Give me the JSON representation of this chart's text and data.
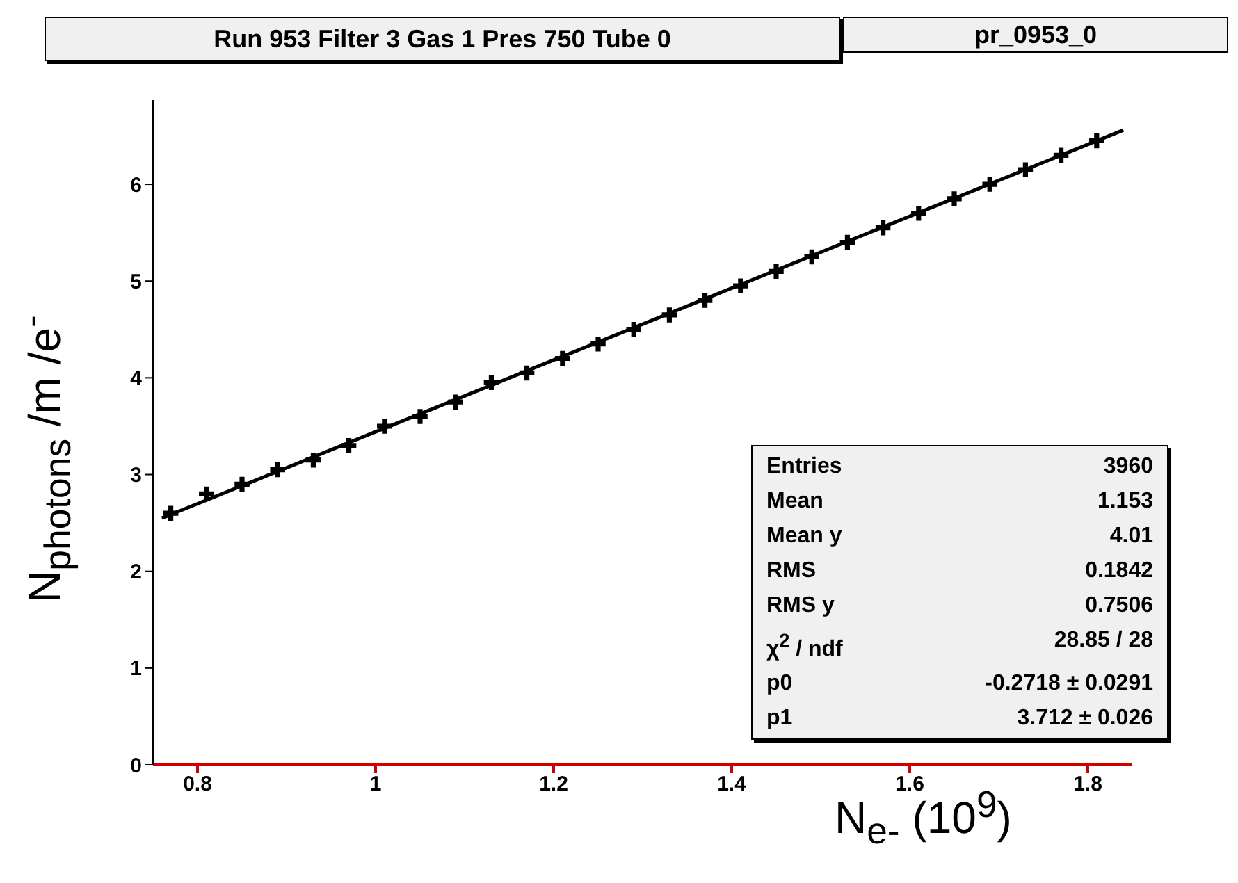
{
  "chart_data": {
    "type": "scatter",
    "title": "Run 953 Filter 3 Gas 1 Pres 750 Tube 0",
    "subtitle": "pr_0953_0",
    "xlabel": "N$_{e-}$ (10$^{9}$)",
    "ylabel": "N$_{photons}$ /m /e$^{-}$",
    "x": [
      0.77,
      0.81,
      0.85,
      0.89,
      0.93,
      0.97,
      1.01,
      1.05,
      1.09,
      1.13,
      1.17,
      1.21,
      1.25,
      1.29,
      1.33,
      1.37,
      1.41,
      1.45,
      1.49,
      1.53,
      1.57,
      1.61,
      1.65,
      1.69,
      1.73,
      1.77,
      1.81
    ],
    "series": [
      {
        "color": "#000000",
        "marker": "cross",
        "values": [
          2.6,
          2.8,
          2.9,
          3.05,
          3.15,
          3.3,
          3.5,
          3.6,
          3.75,
          3.95,
          4.05,
          4.2,
          4.35,
          4.5,
          4.65,
          4.8,
          4.95,
          5.1,
          5.25,
          5.4,
          5.55,
          5.7,
          5.85,
          6.0,
          6.15,
          6.3,
          6.45
        ]
      },
      {
        "type": "line",
        "color": "#000000",
        "x": [
          0.76,
          1.84
        ],
        "values": [
          2.55,
          6.56
        ]
      }
    ],
    "xlim": [
      0.75,
      1.85
    ],
    "xticks": [
      0.8,
      1,
      1.2,
      1.4,
      1.6,
      1.8
    ],
    "ylim": [
      0,
      6.87
    ],
    "yticks": [
      0,
      1,
      2,
      3,
      4,
      5,
      6
    ],
    "grid": false,
    "legend": false,
    "annotations": [
      "Entries\t3960",
      "Mean\t1.153",
      "Mean y\t4.01",
      "RMS\t0.1842",
      "RMS y\t0.7506",
      "χ$^{2}$ / ndf\t28.85 / 28",
      "p0\t-0.2718 ± 0.0291",
      "p1\t3.712 ± 0.026"
    ]
  }
}
